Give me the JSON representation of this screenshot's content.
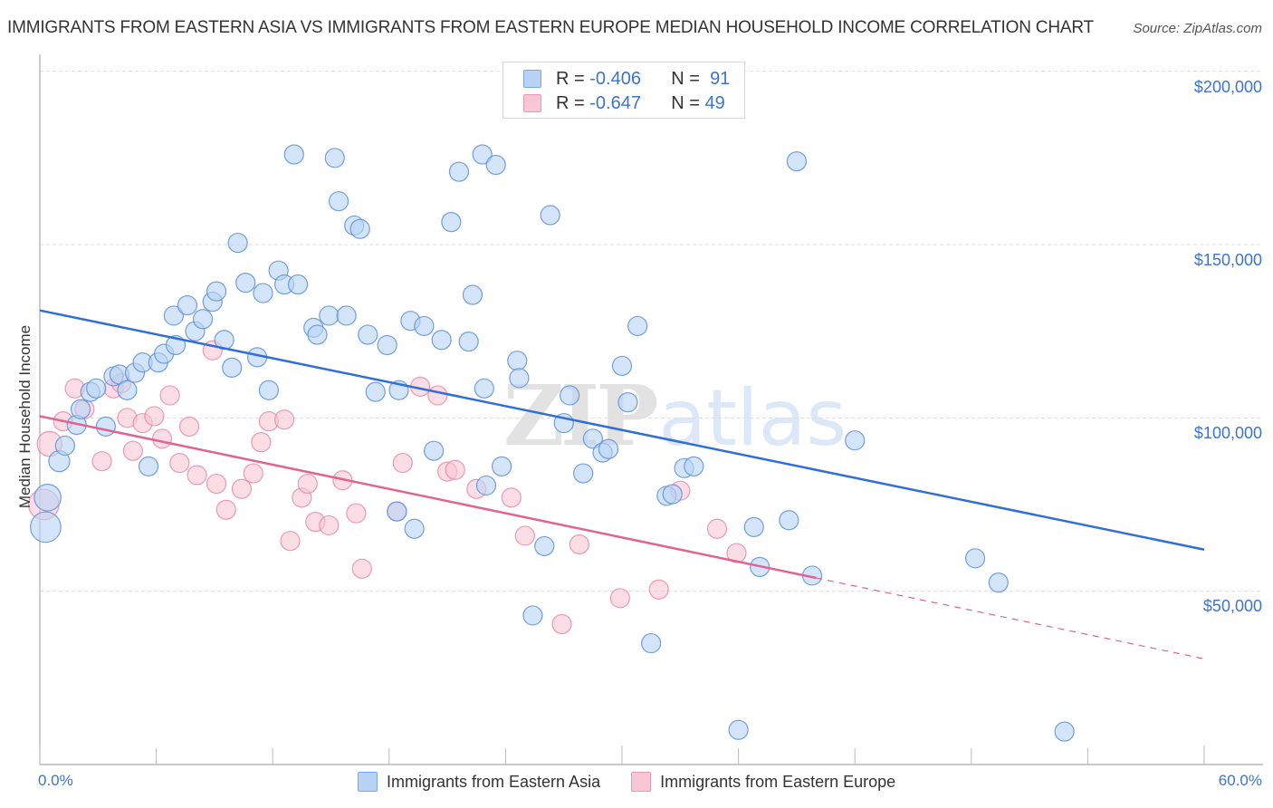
{
  "header": {
    "title": "IMMIGRANTS FROM EASTERN ASIA VS IMMIGRANTS FROM EASTERN EUROPE MEDIAN HOUSEHOLD INCOME CORRELATION CHART",
    "source": "Source: ZipAtlas.com"
  },
  "watermark": {
    "zip": "ZIP",
    "atlas": "atlas"
  },
  "stats_legend": [
    {
      "r_label": "R =",
      "r_value": "-0.406",
      "n_label": "N =",
      "n_value": "91"
    },
    {
      "r_label": "R =",
      "r_value": "-0.647",
      "n_label": "N =",
      "n_value": "49"
    }
  ],
  "chart_data": {
    "type": "scatter",
    "title": "IMMIGRANTS FROM EASTERN ASIA VS IMMIGRANTS FROM EASTERN EUROPE MEDIAN HOUSEHOLD INCOME CORRELATION CHART",
    "xlabel": "",
    "ylabel": "Median Household Income",
    "xlim": [
      0,
      60
    ],
    "ylim": [
      0,
      207000
    ],
    "x_tick_labels": [
      "0.0%",
      "60.0%"
    ],
    "y_ticks": [
      50000,
      100000,
      150000,
      200000
    ],
    "y_tick_labels": [
      "$50,000",
      "$100,000",
      "$150,000",
      "$200,000"
    ],
    "grid": true,
    "legend_position": "bottom-center",
    "colors": {
      "blue_fill": "#b9d3f5",
      "blue_stroke": "#5b8fdc",
      "blue_line": "#2f6fd6",
      "pink_fill": "#f9c6d6",
      "pink_stroke": "#e88aa9",
      "pink_line": "#e0648f"
    },
    "series": [
      {
        "name": "Immigrants from Eastern Asia",
        "R": -0.406,
        "N": 91,
        "trend": {
          "x": [
            0,
            60
          ],
          "y": [
            131000,
            62000
          ],
          "dashed_from": null
        },
        "points": [
          [
            0.3,
            68500,
            1.6
          ],
          [
            0.4,
            77000,
            1.4
          ],
          [
            1.0,
            87500,
            1.1
          ],
          [
            1.3,
            92000,
            1.0
          ],
          [
            1.9,
            98000,
            1.0
          ],
          [
            2.1,
            102500,
            1.0
          ],
          [
            2.6,
            107500,
            1.0
          ],
          [
            3.4,
            97500,
            1.0
          ],
          [
            2.9,
            108500,
            1.0
          ],
          [
            3.8,
            112000,
            1.0
          ],
          [
            4.1,
            112500,
            1.0
          ],
          [
            4.5,
            108000,
            1.0
          ],
          [
            4.9,
            113000,
            1.0
          ],
          [
            5.3,
            116000,
            1.0
          ],
          [
            5.6,
            86000,
            1.0
          ],
          [
            6.1,
            116000,
            1.0
          ],
          [
            6.4,
            118500,
            1.0
          ],
          [
            7.0,
            121000,
            1.0
          ],
          [
            6.9,
            129500,
            1.0
          ],
          [
            7.6,
            132500,
            1.0
          ],
          [
            8.0,
            125000,
            1.0
          ],
          [
            8.4,
            128500,
            1.0
          ],
          [
            8.9,
            133500,
            1.0
          ],
          [
            9.1,
            136500,
            1.0
          ],
          [
            9.5,
            122500,
            1.0
          ],
          [
            9.9,
            114500,
            1.0
          ],
          [
            10.2,
            150500,
            1.0
          ],
          [
            10.6,
            139000,
            1.0
          ],
          [
            11.2,
            117500,
            1.0
          ],
          [
            11.5,
            136000,
            1.0
          ],
          [
            11.8,
            108000,
            1.0
          ],
          [
            12.3,
            142500,
            1.0
          ],
          [
            12.6,
            138500,
            1.0
          ],
          [
            13.3,
            138500,
            1.0
          ],
          [
            13.1,
            176000,
            1.0
          ],
          [
            14.1,
            126000,
            1.0
          ],
          [
            14.3,
            124000,
            1.0
          ],
          [
            14.9,
            129500,
            1.0
          ],
          [
            15.2,
            175000,
            1.0
          ],
          [
            15.4,
            162500,
            1.0
          ],
          [
            15.8,
            129500,
            1.0
          ],
          [
            16.2,
            155500,
            1.0
          ],
          [
            16.5,
            154500,
            1.0
          ],
          [
            16.9,
            124000,
            1.0
          ],
          [
            17.3,
            107500,
            1.0
          ],
          [
            17.9,
            121000,
            1.0
          ],
          [
            18.4,
            73000,
            1.0
          ],
          [
            18.5,
            108000,
            1.0
          ],
          [
            19.1,
            128000,
            1.0
          ],
          [
            19.3,
            68000,
            1.0
          ],
          [
            19.8,
            126500,
            1.0
          ],
          [
            20.3,
            90500,
            1.0
          ],
          [
            20.7,
            122500,
            1.0
          ],
          [
            21.2,
            156500,
            1.0
          ],
          [
            21.6,
            171000,
            1.0
          ],
          [
            22.1,
            122000,
            1.0
          ],
          [
            22.3,
            135500,
            1.0
          ],
          [
            22.8,
            176000,
            1.0
          ],
          [
            22.9,
            108500,
            1.0
          ],
          [
            23.0,
            80500,
            1.0
          ],
          [
            23.5,
            173000,
            1.0
          ],
          [
            23.8,
            86000,
            1.0
          ],
          [
            24.6,
            116500,
            1.0
          ],
          [
            24.7,
            111500,
            1.0
          ],
          [
            25.4,
            43000,
            1.0
          ],
          [
            26.0,
            63000,
            1.0
          ],
          [
            26.3,
            158500,
            1.0
          ],
          [
            27.0,
            98500,
            1.0
          ],
          [
            27.3,
            106500,
            1.0
          ],
          [
            28.0,
            84000,
            1.0
          ],
          [
            28.5,
            94000,
            1.0
          ],
          [
            29.0,
            90000,
            1.0
          ],
          [
            29.3,
            91000,
            1.0
          ],
          [
            30.0,
            115000,
            1.0
          ],
          [
            30.3,
            104500,
            1.0
          ],
          [
            30.8,
            126500,
            1.0
          ],
          [
            31.5,
            35000,
            1.0
          ],
          [
            32.3,
            77500,
            1.0
          ],
          [
            32.6,
            78000,
            1.0
          ],
          [
            33.2,
            85500,
            1.0
          ],
          [
            33.7,
            86000,
            1.0
          ],
          [
            36.0,
            10000,
            1.0
          ],
          [
            36.8,
            68500,
            1.0
          ],
          [
            37.1,
            57000,
            1.0
          ],
          [
            38.6,
            70500,
            1.0
          ],
          [
            39.0,
            174000,
            1.0
          ],
          [
            39.8,
            54500,
            1.0
          ],
          [
            42.0,
            93500,
            1.0
          ],
          [
            48.2,
            59500,
            1.0
          ],
          [
            49.4,
            52500,
            1.0
          ],
          [
            52.8,
            9500,
            1.0
          ]
        ]
      },
      {
        "name": "Immigrants from Eastern Europe",
        "R": -0.647,
        "N": 49,
        "trend": {
          "x": [
            0,
            60
          ],
          "y": [
            100500,
            30500
          ],
          "dashed_from": 40
        },
        "points": [
          [
            0.2,
            75000,
            1.6
          ],
          [
            0.5,
            92500,
            1.3
          ],
          [
            1.2,
            99000,
            1.0
          ],
          [
            1.8,
            108500,
            1.0
          ],
          [
            2.3,
            102500,
            1.0
          ],
          [
            3.2,
            87500,
            1.0
          ],
          [
            3.8,
            108500,
            1.0
          ],
          [
            4.2,
            110000,
            1.0
          ],
          [
            4.5,
            100000,
            1.0
          ],
          [
            4.8,
            90500,
            1.0
          ],
          [
            5.3,
            98500,
            1.0
          ],
          [
            5.9,
            100500,
            1.0
          ],
          [
            6.3,
            94000,
            1.0
          ],
          [
            6.7,
            106500,
            1.0
          ],
          [
            7.2,
            87000,
            1.0
          ],
          [
            7.7,
            97500,
            1.0
          ],
          [
            8.1,
            83500,
            1.0
          ],
          [
            8.9,
            119500,
            1.0
          ],
          [
            9.1,
            81000,
            1.0
          ],
          [
            9.6,
            73500,
            1.0
          ],
          [
            10.4,
            79500,
            1.0
          ],
          [
            11.0,
            84000,
            1.0
          ],
          [
            11.4,
            93000,
            1.0
          ],
          [
            11.8,
            99000,
            1.0
          ],
          [
            12.6,
            99500,
            1.0
          ],
          [
            12.9,
            64500,
            1.0
          ],
          [
            13.5,
            77000,
            1.0
          ],
          [
            13.8,
            81000,
            1.0
          ],
          [
            14.2,
            70000,
            1.0
          ],
          [
            14.9,
            69000,
            1.0
          ],
          [
            15.6,
            82000,
            1.0
          ],
          [
            16.3,
            72500,
            1.0
          ],
          [
            16.6,
            56500,
            1.0
          ],
          [
            18.4,
            73000,
            1.0
          ],
          [
            18.7,
            87000,
            1.0
          ],
          [
            19.6,
            109000,
            1.0
          ],
          [
            20.5,
            106500,
            1.0
          ],
          [
            21.0,
            84500,
            1.0
          ],
          [
            21.4,
            85000,
            1.0
          ],
          [
            22.5,
            79500,
            1.0
          ],
          [
            24.3,
            77000,
            1.0
          ],
          [
            25.0,
            66000,
            1.0
          ],
          [
            26.9,
            40500,
            1.0
          ],
          [
            27.8,
            63500,
            1.0
          ],
          [
            29.9,
            48000,
            1.0
          ],
          [
            31.9,
            50500,
            1.0
          ],
          [
            33.0,
            79000,
            1.0
          ],
          [
            34.9,
            68000,
            1.0
          ],
          [
            35.9,
            61000,
            1.0
          ]
        ]
      }
    ]
  },
  "axis": {
    "ylabel": "Median Household Income",
    "y_ticks": [
      "$200,000",
      "$150,000",
      "$100,000",
      "$50,000"
    ],
    "x_left": "0.0%",
    "x_right": "60.0%"
  },
  "bottom_legend": [
    {
      "label": "Immigrants from Eastern Asia"
    },
    {
      "label": "Immigrants from Eastern Europe"
    }
  ]
}
